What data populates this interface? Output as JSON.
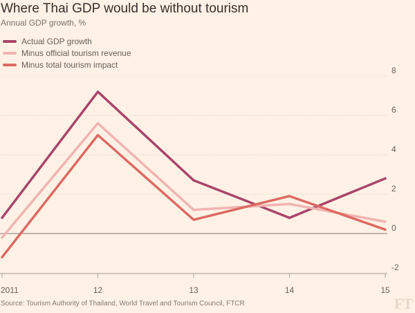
{
  "title": "Where Thai GDP would be without tourism",
  "subtitle": "Annual GDP growth, %",
  "source": "Source: Tourism Authority of Thailand, World Travel and Tourism Council, FTCR",
  "logo": "FT",
  "legend": [
    {
      "label": "Actual GDP growth",
      "color": "#a8456a"
    },
    {
      "label": "Minus official tourism revenue",
      "color": "#f0b4b2"
    },
    {
      "label": "Minus total tourism impact",
      "color": "#dc6a63"
    }
  ],
  "chart_data": {
    "type": "line",
    "x": [
      "2011",
      "12",
      "13",
      "14",
      "15"
    ],
    "series": [
      {
        "name": "Actual GDP growth",
        "color": "#a8456a",
        "values": [
          0.8,
          7.2,
          2.7,
          0.8,
          2.8
        ]
      },
      {
        "name": "Minus official tourism revenue",
        "color": "#f0b4b2",
        "values": [
          -0.2,
          5.6,
          1.2,
          1.5,
          0.6
        ]
      },
      {
        "name": "Minus total tourism impact",
        "color": "#dc6a63",
        "values": [
          -1.2,
          5.0,
          0.7,
          1.9,
          0.2
        ]
      }
    ],
    "yticks": [
      8,
      6,
      4,
      2,
      0,
      -2
    ],
    "ylim": [
      -2,
      8
    ],
    "grid": true,
    "legend_position": "top-left"
  }
}
